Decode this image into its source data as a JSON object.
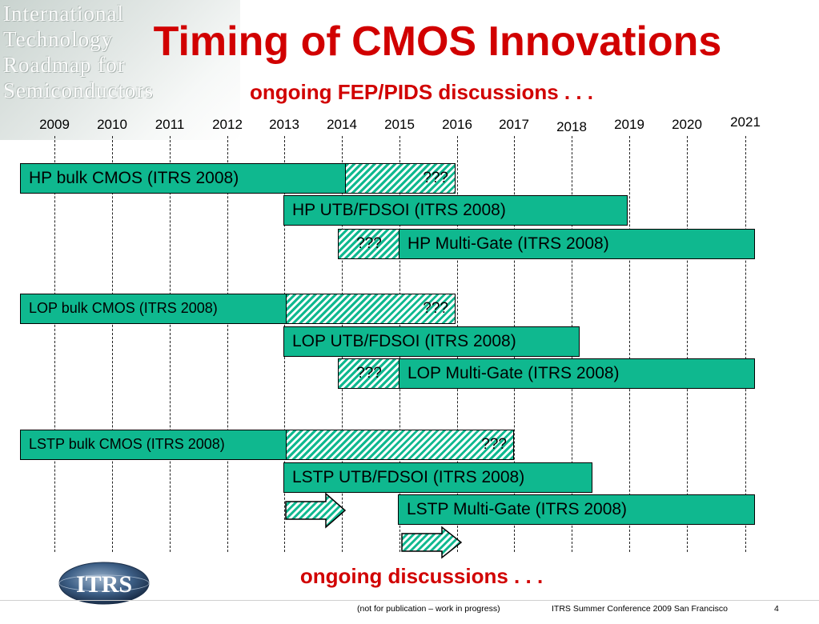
{
  "watermark": {
    "lines": [
      "International",
      "Technology",
      "Roadmap for",
      "Semiconductors"
    ]
  },
  "title": "Timing of CMOS Innovations",
  "subtitle": "ongoing FEP/PIDS discussions . . .",
  "years": [
    "2009",
    "2010",
    "2011",
    "2012",
    "2013",
    "2014",
    "2015",
    "2016",
    "2017",
    "2018",
    "2019",
    "2020",
    "2021"
  ],
  "bars": {
    "hp_bulk": "HP bulk CMOS (ITRS 2008)",
    "hp_bulk_q": "???",
    "hp_utb": "HP UTB/FDSOI (ITRS 2008)",
    "hp_mg_q": "???",
    "hp_mg": "HP Multi-Gate (ITRS 2008)",
    "lop_bulk": "LOP bulk CMOS (ITRS 2008)",
    "lop_bulk_q": "???",
    "lop_utb": "LOP UTB/FDSOI (ITRS 2008)",
    "lop_mg_q": "???",
    "lop_mg": "LOP Multi-Gate (ITRS 2008)",
    "lstp_bulk": "LSTP bulk CMOS (ITRS 2008)",
    "lstp_bulk_q": "???",
    "lstp_utb": "LSTP UTB/FDSOI (ITRS 2008)",
    "lstp_mg": "LSTP Multi-Gate (ITRS 2008)"
  },
  "footer": {
    "discussions": "ongoing discussions . . .",
    "logo_text": "ITRS",
    "note": "(not for publication – work in progress)",
    "conference": "ITRS Summer Conference 2009   San Francisco",
    "page": "4"
  },
  "colors": {
    "title_red": "#d10000",
    "bar_green": "#0fb88f"
  }
}
